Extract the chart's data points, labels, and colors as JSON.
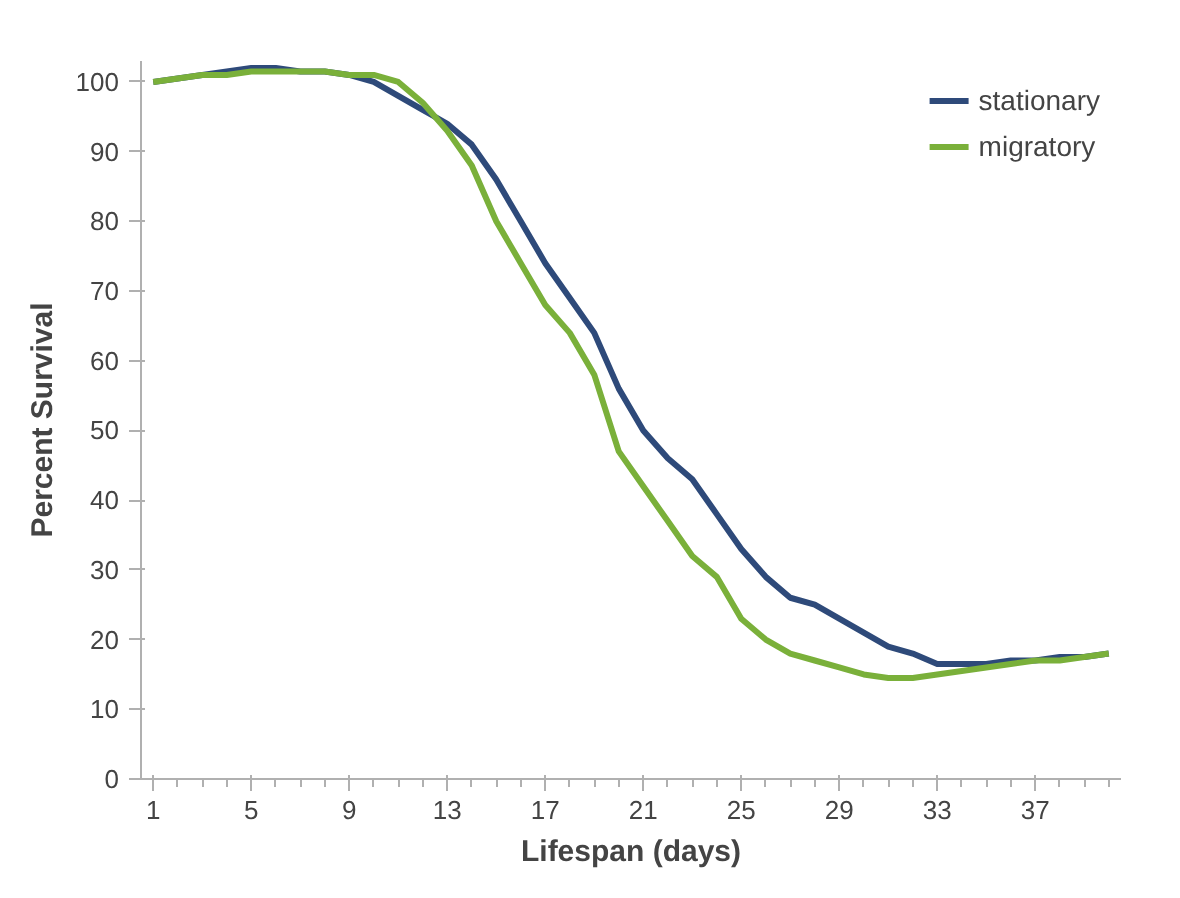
{
  "chart_data": {
    "type": "line",
    "xlabel": "Lifespan (days)",
    "ylabel": "Percent Survival",
    "x": [
      1,
      2,
      3,
      4,
      5,
      6,
      7,
      8,
      9,
      10,
      11,
      12,
      13,
      14,
      15,
      16,
      17,
      18,
      19,
      20,
      21,
      22,
      23,
      24,
      25,
      26,
      27,
      28,
      29,
      30,
      31,
      32,
      33,
      34,
      35,
      36,
      37,
      38,
      39,
      40
    ],
    "series": [
      {
        "name": "stationary",
        "color": "#2e4a7a",
        "values": [
          100,
          100.5,
          101,
          101.5,
          102,
          102,
          101.5,
          101.5,
          101,
          100,
          98,
          96,
          94,
          91,
          86,
          80,
          74,
          69,
          64,
          56,
          50,
          46,
          43,
          38,
          33,
          29,
          26,
          25,
          23,
          21,
          19,
          18,
          16.5,
          16.5,
          16.5,
          17,
          17,
          17.5,
          17.5,
          18
        ]
      },
      {
        "name": "migratory",
        "color": "#7ab03a",
        "values": [
          100,
          100.5,
          101,
          101,
          101.5,
          101.5,
          101.5,
          101.5,
          101,
          101,
          100,
          97,
          93,
          88,
          80,
          74,
          68,
          64,
          58,
          47,
          42,
          37,
          32,
          29,
          23,
          20,
          18,
          17,
          16,
          15,
          14.5,
          14.5,
          15,
          15.5,
          16,
          16.5,
          17,
          17,
          17.5,
          18
        ]
      }
    ],
    "xlim": [
      0.5,
      40.5
    ],
    "xticks": [
      1,
      5,
      9,
      13,
      17,
      21,
      25,
      29,
      33,
      37
    ],
    "ylim": [
      0,
      103
    ],
    "yticks": [
      0,
      10,
      20,
      30,
      40,
      50,
      60,
      70,
      80,
      90,
      100
    ],
    "grid": false,
    "legend": "top right",
    "marker": "none",
    "line_style": "solid"
  }
}
